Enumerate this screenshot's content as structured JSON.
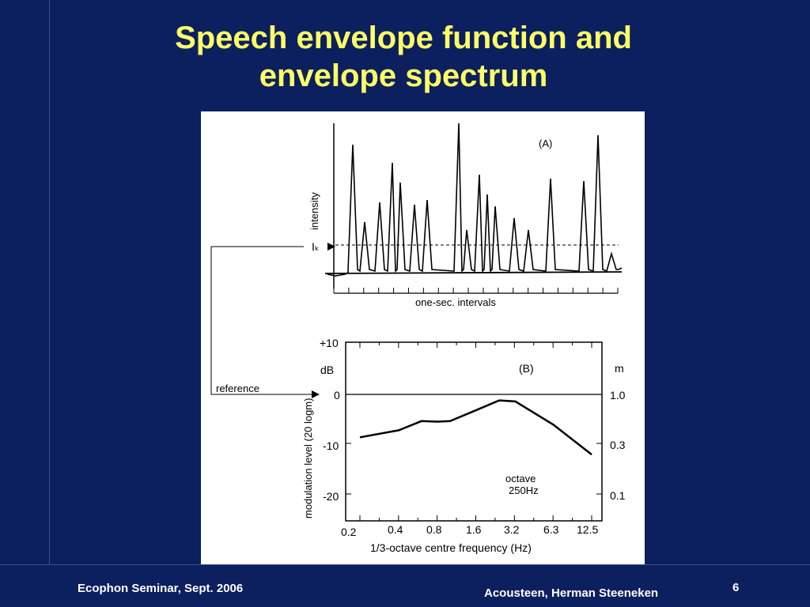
{
  "slide": {
    "title_line1": "Speech envelope function and",
    "title_line2": "envelope spectrum"
  },
  "figure": {
    "panel_a": {
      "tag": "(A)",
      "ylabel": "intensity",
      "threshold_label": "Iₖ",
      "xlabel": "one-sec. intervals",
      "reference_label": "reference"
    },
    "panel_b": {
      "tag": "(B)",
      "ylabel": "modulation level (20 logm)",
      "left_unit": "dB",
      "right_unit": "m",
      "left_ticks": [
        "+10",
        "0",
        "-10",
        "-20"
      ],
      "right_ticks": [
        "1.0",
        "0.3",
        "0.1"
      ],
      "x_ticks": [
        "0.2",
        "0.4",
        "0.8",
        "1.6",
        "3.2",
        "6.3",
        "12.5"
      ],
      "xlabel": "1/3-octave centre frequency (Hz)",
      "annotation_line1": "octave",
      "annotation_line2": "250Hz"
    }
  },
  "chart_data": {
    "type": "line",
    "title": "(B)",
    "xlabel": "1/3-octave centre frequency (Hz)",
    "ylabel": "modulation level (20 logm)",
    "x": [
      0.2,
      0.4,
      0.6,
      0.8,
      1.0,
      1.6,
      2.4,
      3.2,
      6.3,
      12.5
    ],
    "y": [
      -8.8,
      -7.4,
      -5.6,
      -5.7,
      -5.6,
      -3.4,
      -1.5,
      -1.7,
      -6.3,
      -12.2
    ],
    "xscale": "log",
    "ylim": [
      -20,
      10
    ],
    "right_axis": {
      "label": "m",
      "ticks": [
        "1.0",
        "0.3",
        "0.1"
      ]
    }
  },
  "footer": {
    "left": "Ecophon Seminar, Sept. 2006",
    "center": "Acousteen, Herman Steeneken",
    "page": "6"
  }
}
